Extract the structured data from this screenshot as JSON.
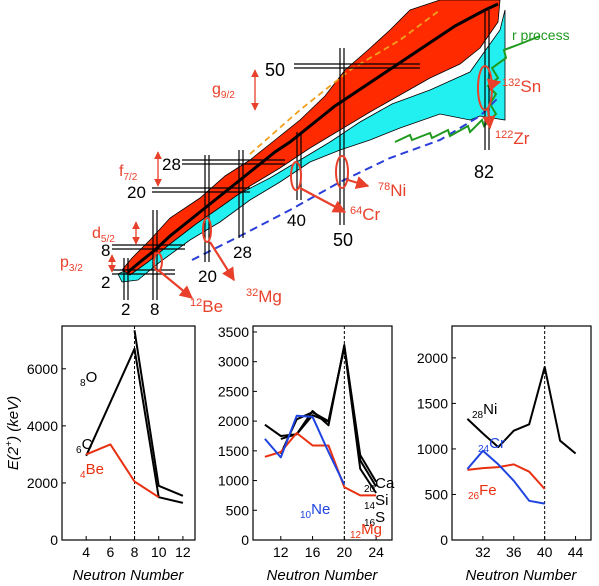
{
  "chart_data": {
    "type": "line",
    "nuclide_chart": {
      "magic_numbers": [
        "2",
        "8",
        "20",
        "28",
        "50",
        "82"
      ],
      "neutron_magic_labels": [
        "2",
        "8",
        "20",
        "28",
        "40",
        "50",
        "82"
      ],
      "proton_magic_labels": [
        "2",
        "8",
        "20",
        "28",
        "50"
      ],
      "orbitals": [
        {
          "label": "p",
          "sub": "3/2"
        },
        {
          "label": "d",
          "sub": "5/2"
        },
        {
          "label": "f",
          "sub": "7/2"
        },
        {
          "label": "g",
          "sub": "9/2"
        }
      ],
      "process_label": "r process",
      "nuclei": [
        {
          "mass": "12",
          "symbol": "Be"
        },
        {
          "mass": "32",
          "symbol": "Mg"
        },
        {
          "mass": "64",
          "symbol": "Cr"
        },
        {
          "mass": "78",
          "symbol": "Ni"
        },
        {
          "mass": "132",
          "symbol": "Sn"
        },
        {
          "mass": "122",
          "symbol": "Zr"
        }
      ],
      "colors": {
        "stable": "#ff2a00",
        "known": "#22f0f0",
        "border": "#000000",
        "accent": "#e8402a",
        "rprocess": "#1f9a1f",
        "dripline": "#2a3fd8",
        "limit": "#f0a020"
      }
    },
    "panels": [
      {
        "ylabel_main": "E(2",
        "ylabel_sup": "+",
        "ylabel_tail": ") (keV)",
        "xlabel": "Neutron Number",
        "xlim": [
          2,
          13
        ],
        "ylim": [
          0,
          7500
        ],
        "xticks": [
          4,
          6,
          8,
          10,
          12
        ],
        "yticks": [
          0,
          2000,
          4000,
          6000
        ],
        "marker_x": 8,
        "series": [
          {
            "color": "#000000",
            "x": [
              8,
              10,
              12
            ],
            "y": [
              7350,
              1900,
              1550
            ]
          },
          {
            "color": "#000000",
            "x": [
              4,
              8,
              10,
              12
            ],
            "y": [
              2950,
              6700,
              1500,
              1300
            ]
          },
          {
            "color": "#e83010",
            "x": [
              4,
              6,
              8,
              10
            ],
            "y": [
              3000,
              3350,
              2050,
              1500
            ]
          }
        ],
        "labels": [
          {
            "pre": "8",
            "text": "O",
            "color": "#000000"
          },
          {
            "pre": "6",
            "text": "C",
            "color": "#000000"
          },
          {
            "pre": "4",
            "text": "Be",
            "color": "#e83010"
          }
        ]
      },
      {
        "xlabel": "Neutron Number",
        "xlim": [
          8.5,
          26
        ],
        "ylim": [
          0,
          3600
        ],
        "xticks": [
          12,
          16,
          20,
          24
        ],
        "yticks": [
          0,
          500,
          1000,
          1500,
          2000,
          2500,
          3000,
          3500
        ],
        "marker_x": 20,
        "series": [
          {
            "color": "#000000",
            "x": [
              10,
              12,
              14,
              16,
              18,
              20,
              22,
              24
            ],
            "y": [
              1940,
              1750,
              1780,
              2170,
              1930,
              3280,
              1430,
              980
            ]
          },
          {
            "color": "#000000",
            "x": [
              12,
              14,
              16,
              18,
              20,
              22,
              24
            ],
            "y": [
              1700,
              1780,
              2100,
              1990,
              3250,
              1340,
              900
            ]
          },
          {
            "color": "#000000",
            "x": [
              12,
              14,
              16,
              18,
              20,
              22,
              24
            ],
            "y": [
              1450,
              2030,
              2150,
              2000,
              3250,
              1200,
              790
            ]
          },
          {
            "color": "#e83010",
            "x": [
              10,
              12,
              14,
              16,
              18,
              20,
              22,
              24
            ],
            "y": [
              1400,
              1480,
              1800,
              1590,
              1590,
              890,
              750,
              750
            ]
          },
          {
            "color": "#1f44e0",
            "x": [
              10,
              12,
              14,
              16,
              18,
              20
            ],
            "y": [
              1700,
              1390,
              2090,
              2070,
              1480,
              930
            ]
          }
        ],
        "labels": [
          {
            "pre": "20",
            "text": "Ca",
            "color": "#000000"
          },
          {
            "pre": "14",
            "text": "Si",
            "color": "#000000"
          },
          {
            "pre": "16",
            "text": "S",
            "color": "#000000"
          },
          {
            "pre": "10",
            "text": "Ne",
            "color": "#1f44e0"
          },
          {
            "pre": "12",
            "text": "Mg",
            "color": "#e83010"
          }
        ]
      },
      {
        "xlabel": "Neutron Number",
        "xlim": [
          28,
          46
        ],
        "ylim": [
          0,
          2350
        ],
        "xticks": [
          32,
          36,
          40,
          44
        ],
        "yticks": [
          0,
          500,
          1000,
          1500,
          2000
        ],
        "marker_x": 40,
        "series": [
          {
            "color": "#000000",
            "x": [
              30,
              32,
              34,
              36,
              38,
              40,
              42,
              44
            ],
            "y": [
              1330,
              1170,
              1020,
              1200,
              1270,
              1900,
              1090,
              950
            ]
          },
          {
            "color": "#e83010",
            "x": [
              30,
              32,
              34,
              36,
              38,
              40
            ],
            "y": [
              770,
              790,
              800,
              830,
              750,
              560
            ]
          },
          {
            "color": "#1f44e0",
            "x": [
              30,
              32,
              34,
              36,
              38,
              40
            ],
            "y": [
              780,
              980,
              830,
              650,
              430,
              400
            ]
          }
        ],
        "labels": [
          {
            "pre": "28",
            "text": "Ni",
            "color": "#000000"
          },
          {
            "pre": "24",
            "text": "Cr",
            "color": "#1f44e0"
          },
          {
            "pre": "26",
            "text": "Fe",
            "color": "#e83010"
          }
        ]
      }
    ]
  }
}
